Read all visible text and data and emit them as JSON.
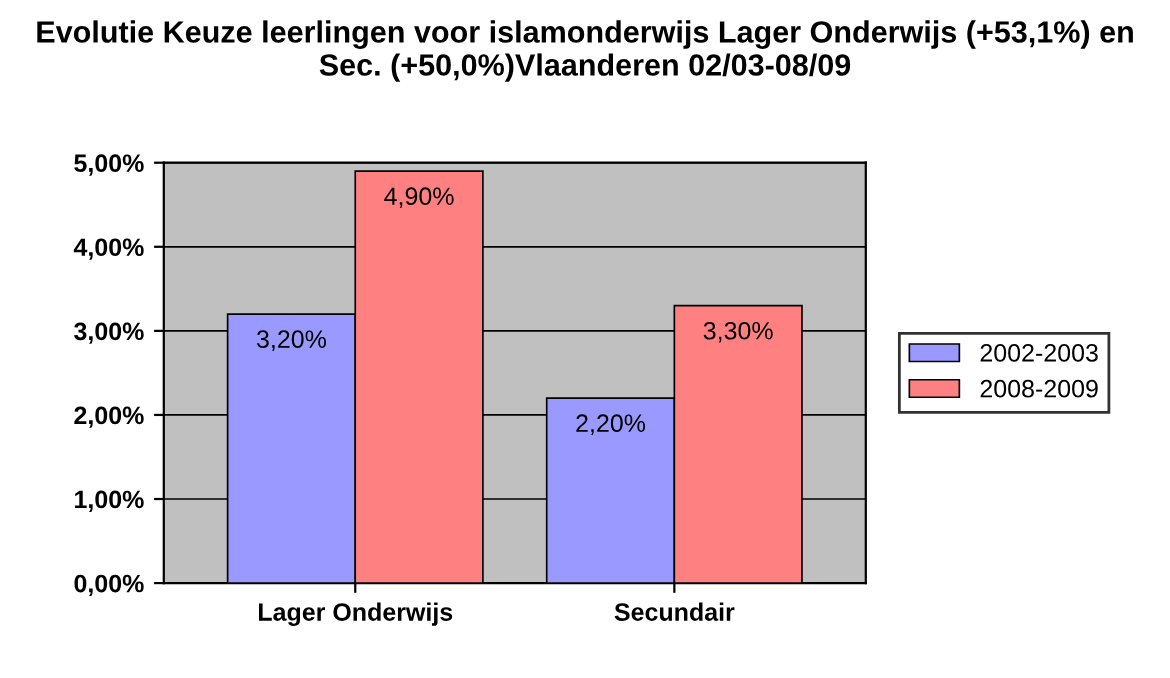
{
  "chart_data": {
    "type": "bar",
    "title": "Evolutie Keuze leerlingen voor islamonderwijs Lager Onderwijs (+53,1%) en Sec. (+50,0%)Vlaanderen 02/03-08/09",
    "categories": [
      "Lager Onderwijs",
      "Secundair"
    ],
    "series": [
      {
        "name": "2002-2003",
        "color": "#9999ff",
        "values": [
          3.2,
          2.2
        ],
        "value_labels": [
          "3,20%",
          "2,20%"
        ]
      },
      {
        "name": "2008-2009",
        "color": "#ff8080",
        "values": [
          4.9,
          3.3
        ],
        "value_labels": [
          "4,90%",
          "3,30%"
        ]
      }
    ],
    "ylim": [
      0,
      5
    ],
    "yticks": [
      {
        "value": 0,
        "label": "0,00%"
      },
      {
        "value": 1,
        "label": "1,00%"
      },
      {
        "value": 2,
        "label": "2,00%"
      },
      {
        "value": 3,
        "label": "3,00%"
      },
      {
        "value": 4,
        "label": "4,00%"
      },
      {
        "value": 5,
        "label": "5,00%"
      }
    ],
    "grid": "y",
    "legend": "right"
  }
}
